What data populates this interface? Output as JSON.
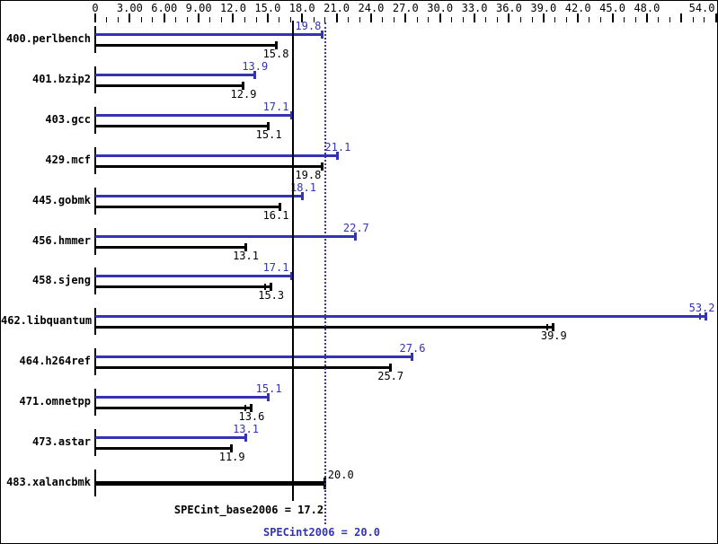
{
  "colors": {
    "peak_blue": "#3333b4",
    "base_black": "#000000",
    "background": "#ffffff"
  },
  "chart_data": {
    "type": "bar",
    "orientation": "horizontal",
    "title": "",
    "x_axis": {
      "min": 0,
      "max": 54,
      "major_step": 3,
      "minor_step": 1,
      "tick_labels": [
        {
          "value": 0,
          "label": "0"
        },
        {
          "value": 3,
          "label": "3.00"
        },
        {
          "value": 6,
          "label": "6.00"
        },
        {
          "value": 9,
          "label": "9.00"
        },
        {
          "value": 12,
          "label": "12.0"
        },
        {
          "value": 15,
          "label": "15.0"
        },
        {
          "value": 18,
          "label": "18.0"
        },
        {
          "value": 21,
          "label": "21.0"
        },
        {
          "value": 24,
          "label": "24.0"
        },
        {
          "value": 27,
          "label": "27.0"
        },
        {
          "value": 30,
          "label": "30.0"
        },
        {
          "value": 33,
          "label": "33.0"
        },
        {
          "value": 36,
          "label": "36.0"
        },
        {
          "value": 39,
          "label": "39.0"
        },
        {
          "value": 42,
          "label": "42.0"
        },
        {
          "value": 45,
          "label": "45.0"
        },
        {
          "value": 48,
          "label": "48.0"
        },
        {
          "value": 54,
          "label": "54.0"
        }
      ]
    },
    "series": [
      {
        "name": "SPECint2006 (peak)",
        "color": "#3333b4"
      },
      {
        "name": "SPECint_base2006 (base)",
        "color": "#000000"
      }
    ],
    "benchmarks": [
      {
        "name": "400.perlbench",
        "peak": 19.8,
        "peak_label": "19.8",
        "base": 15.8,
        "base_label": "15.8"
      },
      {
        "name": "401.bzip2",
        "peak": 13.9,
        "peak_label": "13.9",
        "base": 12.9,
        "base_label": "12.9"
      },
      {
        "name": "403.gcc",
        "peak": 17.1,
        "peak_label": "17.1",
        "base": 15.1,
        "base_label": "15.1"
      },
      {
        "name": "429.mcf",
        "peak": 21.1,
        "peak_label": "21.1",
        "base": 19.8,
        "base_label": "19.8"
      },
      {
        "name": "445.gobmk",
        "peak": 18.1,
        "peak_label": "18.1",
        "base": 16.1,
        "base_label": "16.1"
      },
      {
        "name": "456.hmmer",
        "peak": 22.7,
        "peak_label": "22.7",
        "base": 13.1,
        "base_label": "13.1"
      },
      {
        "name": "458.sjeng",
        "peak": 17.1,
        "peak_label": "17.1",
        "base": 15.3,
        "base_label": "15.3",
        "base_range": true
      },
      {
        "name": "462.libquantum",
        "peak": 53.2,
        "peak_label": "53.2",
        "base": 39.9,
        "base_label": "39.9",
        "peak_range": true,
        "base_range": true
      },
      {
        "name": "464.h264ref",
        "peak": 27.6,
        "peak_label": "27.6",
        "base": 25.7,
        "base_label": "25.7"
      },
      {
        "name": "471.omnetpp",
        "peak": 15.1,
        "peak_label": "15.1",
        "base": 13.6,
        "base_label": "13.6",
        "base_range": true
      },
      {
        "name": "473.astar",
        "peak": 13.1,
        "peak_label": "13.1",
        "base": 11.9,
        "base_label": "11.9"
      },
      {
        "name": "483.xalancbmk",
        "peak": null,
        "peak_label": "",
        "base": 20.0,
        "base_label": "20.0",
        "thick": true
      }
    ],
    "reference_lines": [
      {
        "name": "SPECint_base2006",
        "value": 17.2,
        "style": "solid",
        "color": "#000000"
      },
      {
        "name": "SPECint2006",
        "value": 20.0,
        "style": "dotted",
        "color": "#3333b4"
      }
    ],
    "base_footer": "SPECint_base2006 = 17.2",
    "peak_footer": "SPECint2006 = 20.0"
  }
}
